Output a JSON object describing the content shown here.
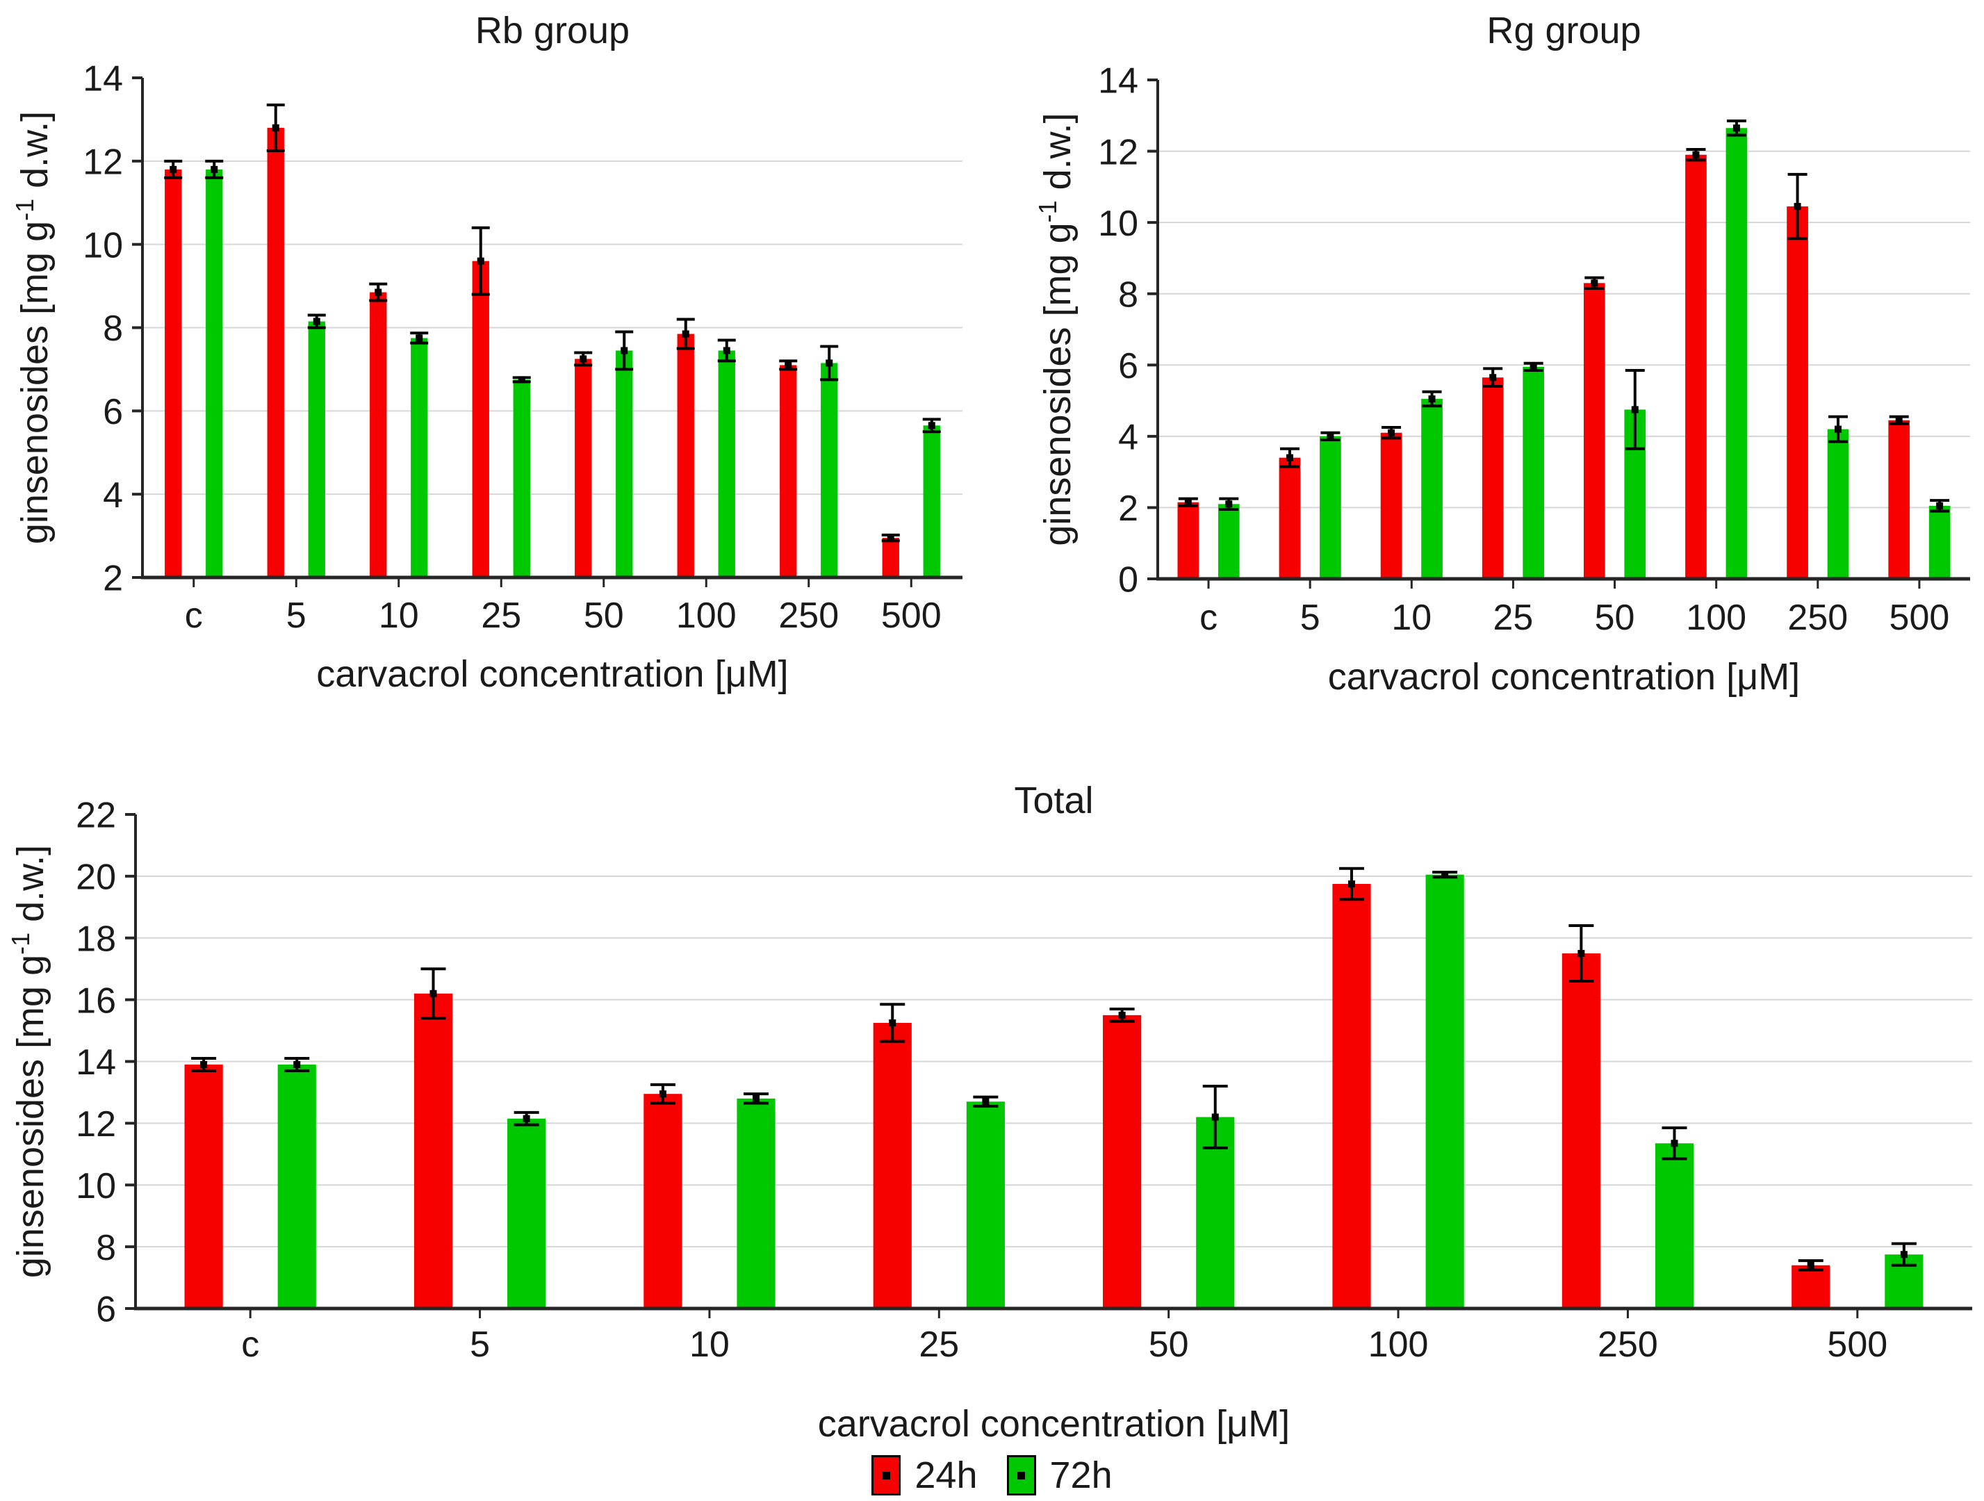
{
  "figure": {
    "background": "#ffffff",
    "text_color": "#1a1a1a",
    "grid_color": "#d6d6d6",
    "axis_color": "#262626",
    "error_bar_color": "#000000"
  },
  "legend": {
    "items": [
      {
        "label": "24h",
        "color": "#f70000"
      },
      {
        "label": "72h",
        "color": "#00c800"
      }
    ]
  },
  "chart_data": [
    {
      "id": "rb",
      "type": "bar",
      "title": "Rb group",
      "xlabel": "carvacrol concentration [μM]",
      "ylabel": {
        "prefix": "ginsenosides [mg g",
        "sup": "-1",
        "suffix": " d.w.]"
      },
      "categories": [
        "c",
        "5",
        "10",
        "25",
        "50",
        "100",
        "250",
        "500"
      ],
      "ylim": [
        2,
        14
      ],
      "yticks": [
        2,
        4,
        6,
        8,
        10,
        12,
        14
      ],
      "grid": "horizontal",
      "legend_position": "bottom-shared",
      "series": [
        {
          "name": "24h",
          "color": "#f70000",
          "values": [
            11.8,
            12.8,
            8.85,
            9.6,
            7.25,
            7.85,
            7.1,
            2.95
          ],
          "errors": [
            0.2,
            0.55,
            0.2,
            0.8,
            0.15,
            0.35,
            0.1,
            0.07
          ]
        },
        {
          "name": "72h",
          "color": "#00c800",
          "values": [
            11.8,
            8.15,
            7.75,
            6.75,
            7.45,
            7.45,
            7.15,
            5.65
          ],
          "errors": [
            0.2,
            0.15,
            0.12,
            0.05,
            0.45,
            0.25,
            0.4,
            0.15
          ]
        }
      ]
    },
    {
      "id": "rg",
      "type": "bar",
      "title": "Rg group",
      "xlabel": "carvacrol concentration [μM]",
      "ylabel": {
        "prefix": "ginsenosides [mg g",
        "sup": "-1",
        "suffix": " d.w.]"
      },
      "categories": [
        "c",
        "5",
        "10",
        "25",
        "50",
        "100",
        "250",
        "500"
      ],
      "ylim": [
        0,
        14
      ],
      "yticks": [
        0,
        2,
        4,
        6,
        8,
        10,
        12,
        14
      ],
      "grid": "horizontal",
      "legend_position": "bottom-shared",
      "series": [
        {
          "name": "24h",
          "color": "#f70000",
          "values": [
            2.15,
            3.4,
            4.1,
            5.65,
            8.3,
            11.9,
            10.45,
            4.45
          ],
          "errors": [
            0.1,
            0.25,
            0.15,
            0.25,
            0.15,
            0.15,
            0.9,
            0.1
          ]
        },
        {
          "name": "72h",
          "color": "#00c800",
          "values": [
            2.1,
            4.0,
            5.05,
            5.95,
            4.75,
            12.65,
            4.2,
            2.05
          ],
          "errors": [
            0.15,
            0.1,
            0.2,
            0.1,
            1.1,
            0.2,
            0.35,
            0.15
          ]
        }
      ]
    },
    {
      "id": "total",
      "type": "bar",
      "title": "Total",
      "xlabel": "carvacrol concentration [μM]",
      "ylabel": {
        "prefix": "ginsenosides [mg g",
        "sup": "-1",
        "suffix": " d.w.]"
      },
      "categories": [
        "c",
        "5",
        "10",
        "25",
        "50",
        "100",
        "250",
        "500"
      ],
      "ylim": [
        6,
        22
      ],
      "yticks": [
        6,
        8,
        10,
        12,
        14,
        16,
        18,
        20,
        22
      ],
      "grid": "horizontal",
      "legend_position": "bottom-shared",
      "series": [
        {
          "name": "24h",
          "color": "#f70000",
          "values": [
            13.9,
            16.2,
            12.95,
            15.25,
            15.5,
            19.75,
            17.5,
            7.4
          ],
          "errors": [
            0.2,
            0.8,
            0.3,
            0.6,
            0.2,
            0.5,
            0.9,
            0.15
          ]
        },
        {
          "name": "72h",
          "color": "#00c800",
          "values": [
            13.9,
            12.15,
            12.8,
            12.7,
            12.2,
            20.05,
            11.35,
            7.75
          ],
          "errors": [
            0.2,
            0.2,
            0.15,
            0.15,
            1.0,
            0.08,
            0.5,
            0.35
          ]
        }
      ]
    }
  ]
}
